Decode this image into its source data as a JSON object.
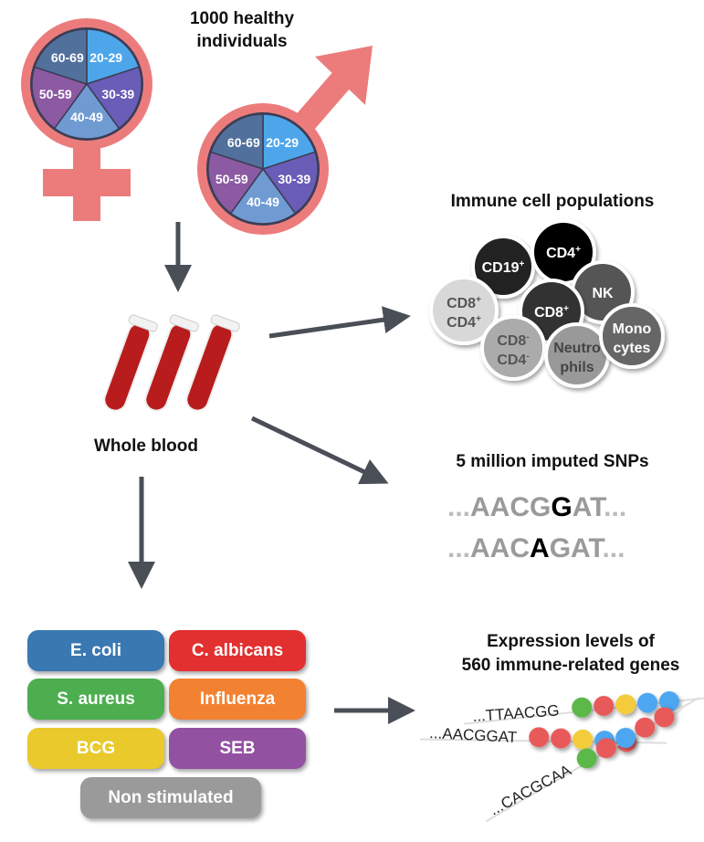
{
  "cohort": {
    "title_line1": "1000 healthy",
    "title_line2": "individuals",
    "age_groups": [
      "20-29",
      "30-39",
      "40-49",
      "50-59",
      "60-69"
    ],
    "age_colors": [
      "#4ea6ea",
      "#6a5db8",
      "#6f9bd2",
      "#8b5aa2",
      "#51709c"
    ],
    "symbol_color": "#ec7c7c"
  },
  "sample": {
    "label": "Whole blood"
  },
  "immune": {
    "title": "Immune cell populations",
    "cells": [
      {
        "l1": "CD19",
        "s1": "+",
        "l2": "",
        "s2": "",
        "fill": "#222222",
        "text": "#ffffff"
      },
      {
        "l1": "CD4",
        "s1": "+",
        "l2": "",
        "s2": "",
        "fill": "#050505",
        "text": "#ffffff"
      },
      {
        "l1": "NK",
        "s1": "",
        "l2": "",
        "s2": "",
        "fill": "#555555",
        "text": "#ffffff"
      },
      {
        "l1": "CD8",
        "s1": "+",
        "l2": "CD4",
        "s2": "+",
        "fill": "#d8d8d8",
        "text": "#555555"
      },
      {
        "l1": "CD8",
        "s1": "+",
        "l2": "",
        "s2": "",
        "fill": "#333333",
        "text": "#ffffff"
      },
      {
        "l1": "CD8",
        "s1": "-",
        "l2": "CD4",
        "s2": "-",
        "fill": "#ababab",
        "text": "#555555"
      },
      {
        "l1": "Neutro",
        "s1": "",
        "l2": "phils",
        "s2": "",
        "fill": "#999999",
        "text": "#444444"
      },
      {
        "l1": "Mono",
        "s1": "",
        "l2": "cytes",
        "s2": "",
        "fill": "#666666",
        "text": "#ffffff"
      }
    ]
  },
  "snps": {
    "title": "5 million imputed SNPs",
    "seq1": {
      "pre": "AACG",
      "var": "G",
      "post": "AT"
    },
    "seq2": {
      "pre": "AAC",
      "var": "A",
      "post": "GAT"
    },
    "dots": "..."
  },
  "stimuli": [
    {
      "label": "E. coli",
      "color": "#3a78b2"
    },
    {
      "label": "C. albicans",
      "color": "#e22f2f"
    },
    {
      "label": "S. aureus",
      "color": "#4cae4f"
    },
    {
      "label": "Influenza",
      "color": "#f28232"
    },
    {
      "label": "BCG",
      "color": "#e9c92c"
    },
    {
      "label": "SEB",
      "color": "#9351a2"
    },
    {
      "label": "Non stimulated",
      "color": "#9a9a9a"
    }
  ],
  "expression": {
    "title_line1": "Expression levels of",
    "title_line2": "560 immune-related genes",
    "strands": [
      {
        "seq": "...TTAACGG",
        "beads": [
          "#5cb84a",
          "#e85a5a",
          "#f2cc3a",
          "#4ea6f0",
          "#4ea6f0"
        ]
      },
      {
        "seq": "...AACGGAT",
        "beads": [
          "#e85a5a",
          "#e85a5a",
          "#f2cc3a",
          "#4ea6f0",
          "#e85a5a"
        ]
      },
      {
        "seq": "...CACGCAA",
        "beads": [
          "#5cb84a",
          "#e85a5a",
          "#4ea6f0",
          "#e85a5a",
          "#e85a5a"
        ]
      }
    ]
  }
}
